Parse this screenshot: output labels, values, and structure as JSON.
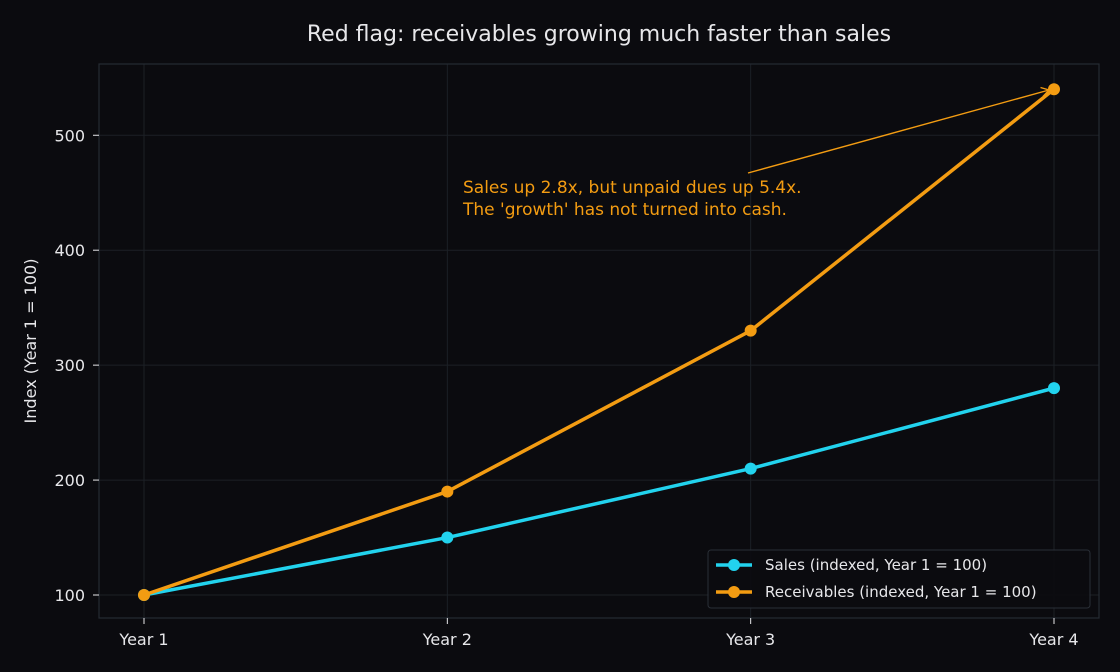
{
  "chart_data": {
    "type": "line",
    "title": "Red flag: receivables growing much faster than sales",
    "xlabel": "",
    "ylabel": "Index (Year 1 = 100)",
    "categories": [
      "Year 1",
      "Year 2",
      "Year 3",
      "Year 4"
    ],
    "ylim": [
      80,
      562
    ],
    "yticks": [
      100,
      200,
      300,
      400,
      500
    ],
    "grid": true,
    "legend_position": "bottom-right",
    "series": [
      {
        "name": "Sales (indexed, Year 1 = 100)",
        "values": [
          100,
          150,
          210,
          280
        ],
        "color": "#22d3ee"
      },
      {
        "name": "Receivables (indexed, Year 1 = 100)",
        "values": [
          100,
          190,
          330,
          540
        ],
        "color": "#f39c12"
      }
    ],
    "annotation": {
      "lines": [
        "Sales up 2.8x, but unpaid dues up 5.4x.",
        "The 'growth' has not turned into cash."
      ],
      "points_to": {
        "category": "Year 4",
        "series": "Receivables (indexed, Year 1 = 100)",
        "value": 540
      },
      "color": "#f39c12"
    }
  },
  "colors": {
    "background": "#0b0b0f",
    "plot_background": "#0b0b0f",
    "grid": "#1c2026",
    "axis": "#262b33",
    "text": "#e7e7ea"
  }
}
